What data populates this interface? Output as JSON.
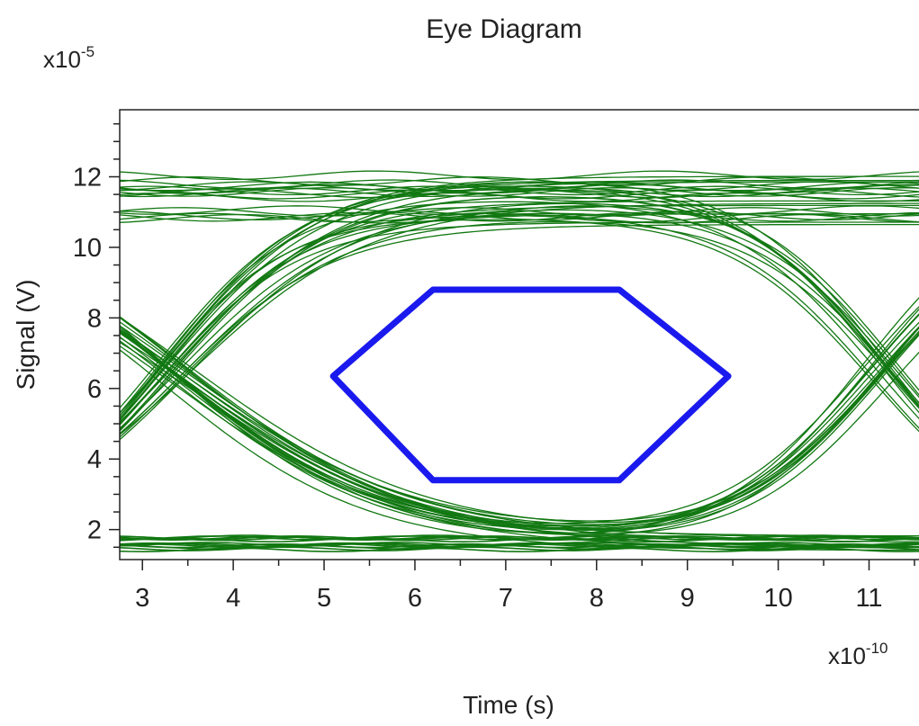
{
  "chart_data": {
    "type": "line",
    "title": "Eye Diagram",
    "xlabel": "Time (s)",
    "ylabel": "Signal (V)",
    "x_multiplier": {
      "base": "x10",
      "exponent": "-10"
    },
    "y_multiplier": {
      "base": "x10",
      "exponent": "-5"
    },
    "xlim": [
      2.75,
      11.55
    ],
    "ylim": [
      1.15,
      13.9
    ],
    "x_ticks": [
      3,
      4,
      5,
      6,
      7,
      8,
      9,
      10,
      11
    ],
    "y_ticks": [
      2,
      4,
      6,
      8,
      10,
      12
    ],
    "grid": false,
    "legend": "none",
    "trace_color": "#127812",
    "mask_color": "#1a1aee",
    "signal_levels": {
      "high": 11.3,
      "low": 1.6,
      "crossing": 6.4
    },
    "crossing_times": [
      3.2,
      11.2
    ],
    "series": [
      {
        "role": "eye-mask",
        "x": [
          5.1,
          6.2,
          8.25,
          9.45,
          8.25,
          6.2,
          5.1
        ],
        "y": [
          6.35,
          8.8,
          8.8,
          6.35,
          3.4,
          3.4,
          6.35
        ]
      }
    ]
  }
}
